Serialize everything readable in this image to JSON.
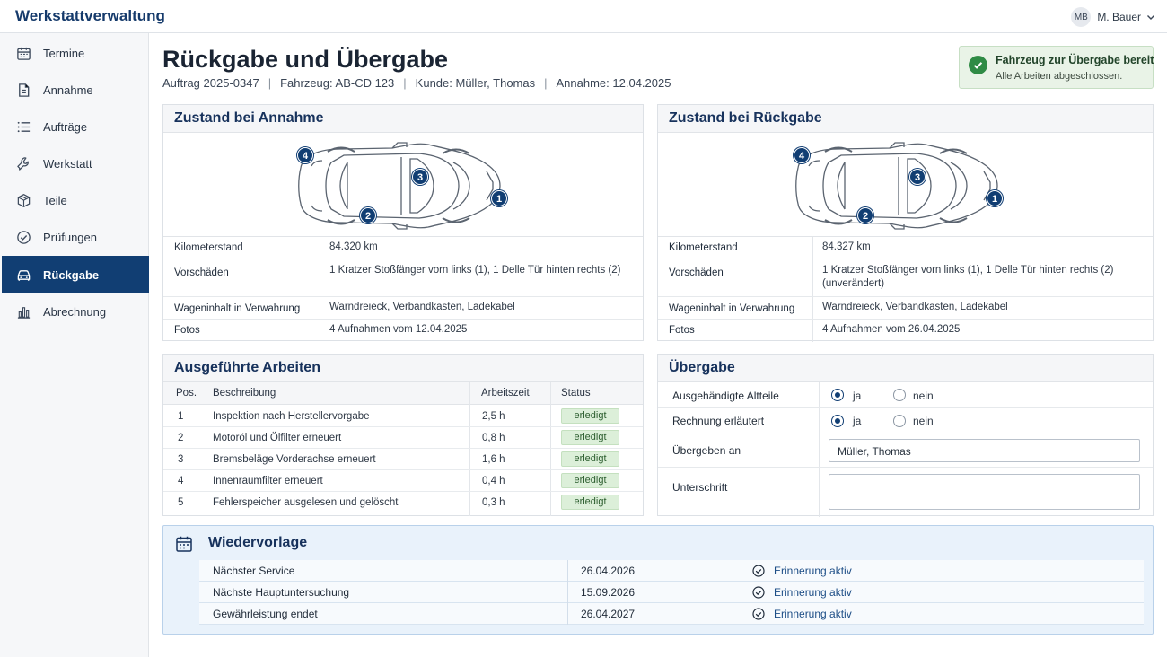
{
  "app": {
    "title": "Werkstattverwaltung"
  },
  "user": {
    "initials": "MB",
    "name": "M. Bauer"
  },
  "nav": [
    {
      "label": "Termine",
      "icon": "calendar-icon"
    },
    {
      "label": "Annahme",
      "icon": "document-icon"
    },
    {
      "label": "Aufträge",
      "icon": "list-icon"
    },
    {
      "label": "Werkstatt",
      "icon": "wrench-icon"
    },
    {
      "label": "Teile",
      "icon": "box-icon"
    },
    {
      "label": "Prüfungen",
      "icon": "check-circle-icon"
    },
    {
      "label": "Rückgabe",
      "icon": "car-icon",
      "active": true
    },
    {
      "label": "Abrechnung",
      "icon": "bar-chart-icon"
    }
  ],
  "page": {
    "title": "Rückgabe und Übergabe",
    "meta": [
      "Auftrag 2025-0347",
      "Fahrzeug: AB-CD 123",
      "Kunde: Müller, Thomas",
      "Annahme: 12.04.2025"
    ]
  },
  "alert": {
    "title": "Fahrzeug zur Übergabe bereit",
    "text": "Alle Arbeiten abgeschlossen.",
    "color": "#2f8b45"
  },
  "annahme": {
    "title": "Zustand bei Annahme",
    "markers": [
      "1",
      "2",
      "3",
      "4"
    ],
    "rows": [
      {
        "label": "Kilometerstand",
        "value": "84.320 km"
      },
      {
        "label": "Vorschäden",
        "value": "1 Kratzer Stoßfänger vorn links (1), 1 Delle Tür hinten rechts (2)"
      },
      {
        "label": "Wageninhalt in Verwahrung",
        "value": "Warndreieck, Verbandkasten, Ladekabel"
      },
      {
        "label": "Fotos",
        "value": "4 Aufnahmen vom 12.04.2025"
      }
    ]
  },
  "rueckgabe": {
    "title": "Zustand bei Rückgabe",
    "markers": [
      "1",
      "2",
      "3",
      "4"
    ],
    "rows": [
      {
        "label": "Kilometerstand",
        "value": "84.327 km"
      },
      {
        "label": "Vorschäden",
        "value": "1 Kratzer Stoßfänger vorn links (1), 1 Delle Tür hinten rechts (2) (unverändert)"
      },
      {
        "label": "Wageninhalt in Verwahrung",
        "value": "Warndreieck, Verbandkasten, Ladekabel"
      },
      {
        "label": "Fotos",
        "value": "4 Aufnahmen vom 26.04.2025"
      }
    ]
  },
  "arbeiten": {
    "title": "Ausgeführte Arbeiten",
    "columns": [
      "Pos.",
      "Beschreibung",
      "Arbeitszeit",
      "Status"
    ],
    "rows": [
      {
        "pos": "1",
        "desc": "Inspektion nach Herstellervorgabe",
        "time": "2,5 h",
        "status": "erledigt"
      },
      {
        "pos": "2",
        "desc": "Motoröl und Ölfilter erneuert",
        "time": "0,8 h",
        "status": "erledigt"
      },
      {
        "pos": "3",
        "desc": "Bremsbeläge Vorderachse erneuert",
        "time": "1,6 h",
        "status": "erledigt"
      },
      {
        "pos": "4",
        "desc": "Innenraumfilter erneuert",
        "time": "0,4 h",
        "status": "erledigt"
      },
      {
        "pos": "5",
        "desc": "Fehlerspeicher ausgelesen und gelöscht",
        "time": "0,3 h",
        "status": "erledigt"
      }
    ]
  },
  "uebergabe": {
    "title": "Übergabe",
    "altteile_label": "Ausgehändigte Altteile",
    "rechnung_label": "Rechnung erläutert",
    "yes": "ja",
    "no": "nein",
    "altteile_value": "ja",
    "rechnung_value": "ja",
    "uebergeben_label": "Übergeben an",
    "uebergeben_value": "Müller, Thomas",
    "unterschrift_label": "Unterschrift",
    "unterschrift_value": ""
  },
  "wiedervorlage": {
    "title": "Wiedervorlage",
    "rows": [
      {
        "label": "Nächster Service",
        "date": "26.04.2026",
        "status": "Erinnerung aktiv"
      },
      {
        "label": "Nächste Hauptuntersuchung",
        "date": "15.09.2026",
        "status": "Erinnerung aktiv"
      },
      {
        "label": "Gewährleistung endet",
        "date": "26.04.2027",
        "status": "Erinnerung aktiv"
      }
    ]
  },
  "colors": {
    "primary": "#113e73",
    "success_bg": "#dcefd9",
    "info_bg": "#e9f2fb"
  }
}
